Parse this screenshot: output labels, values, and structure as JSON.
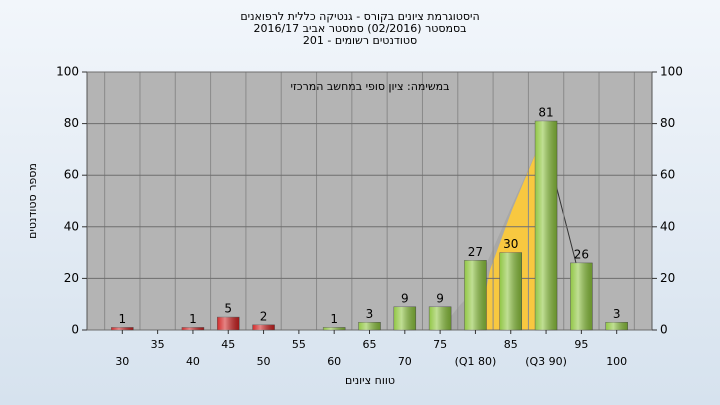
{
  "chart_data": {
    "type": "bar",
    "title": "היסטוגרמת ציונים בקורס - גנטיקה כללית לרפואנים",
    "subtitle": "בסמסטר  (02/2016)  סמסטר אביב 2016/17",
    "subtitle2": "סטודנטים רשומים - 201",
    "annotation": "במשימה: ציון סופי במחשב המרכזי",
    "ylabel": "מספר סטודנטים",
    "xlabel": "טווח ציונים",
    "categories": [
      "30",
      "35",
      "40",
      "45",
      "50",
      "55",
      "60",
      "65",
      "70",
      "75",
      "(Q1 80)",
      "85",
      "(Q3 90)",
      "95",
      "100"
    ],
    "values": [
      1,
      null,
      1,
      5,
      2,
      null,
      1,
      3,
      9,
      9,
      27,
      30,
      81,
      26,
      3
    ],
    "colors": [
      "#d02020",
      "#d02020",
      "#d02020",
      "#d02020",
      "#d02020",
      "#d02020",
      "#8cc43c",
      "#8cc43c",
      "#8cc43c",
      "#8cc43c",
      "#8cc43c",
      "#8cc43c",
      "#8cc43c",
      "#8cc43c",
      "#8cc43c"
    ],
    "ylim": [
      0,
      100
    ],
    "yticks": [
      0,
      20,
      40,
      60,
      80,
      100
    ],
    "y2lim": [
      0,
      100
    ],
    "y2ticks": [
      0,
      20,
      40,
      60,
      80,
      100
    ],
    "grid": true
  }
}
